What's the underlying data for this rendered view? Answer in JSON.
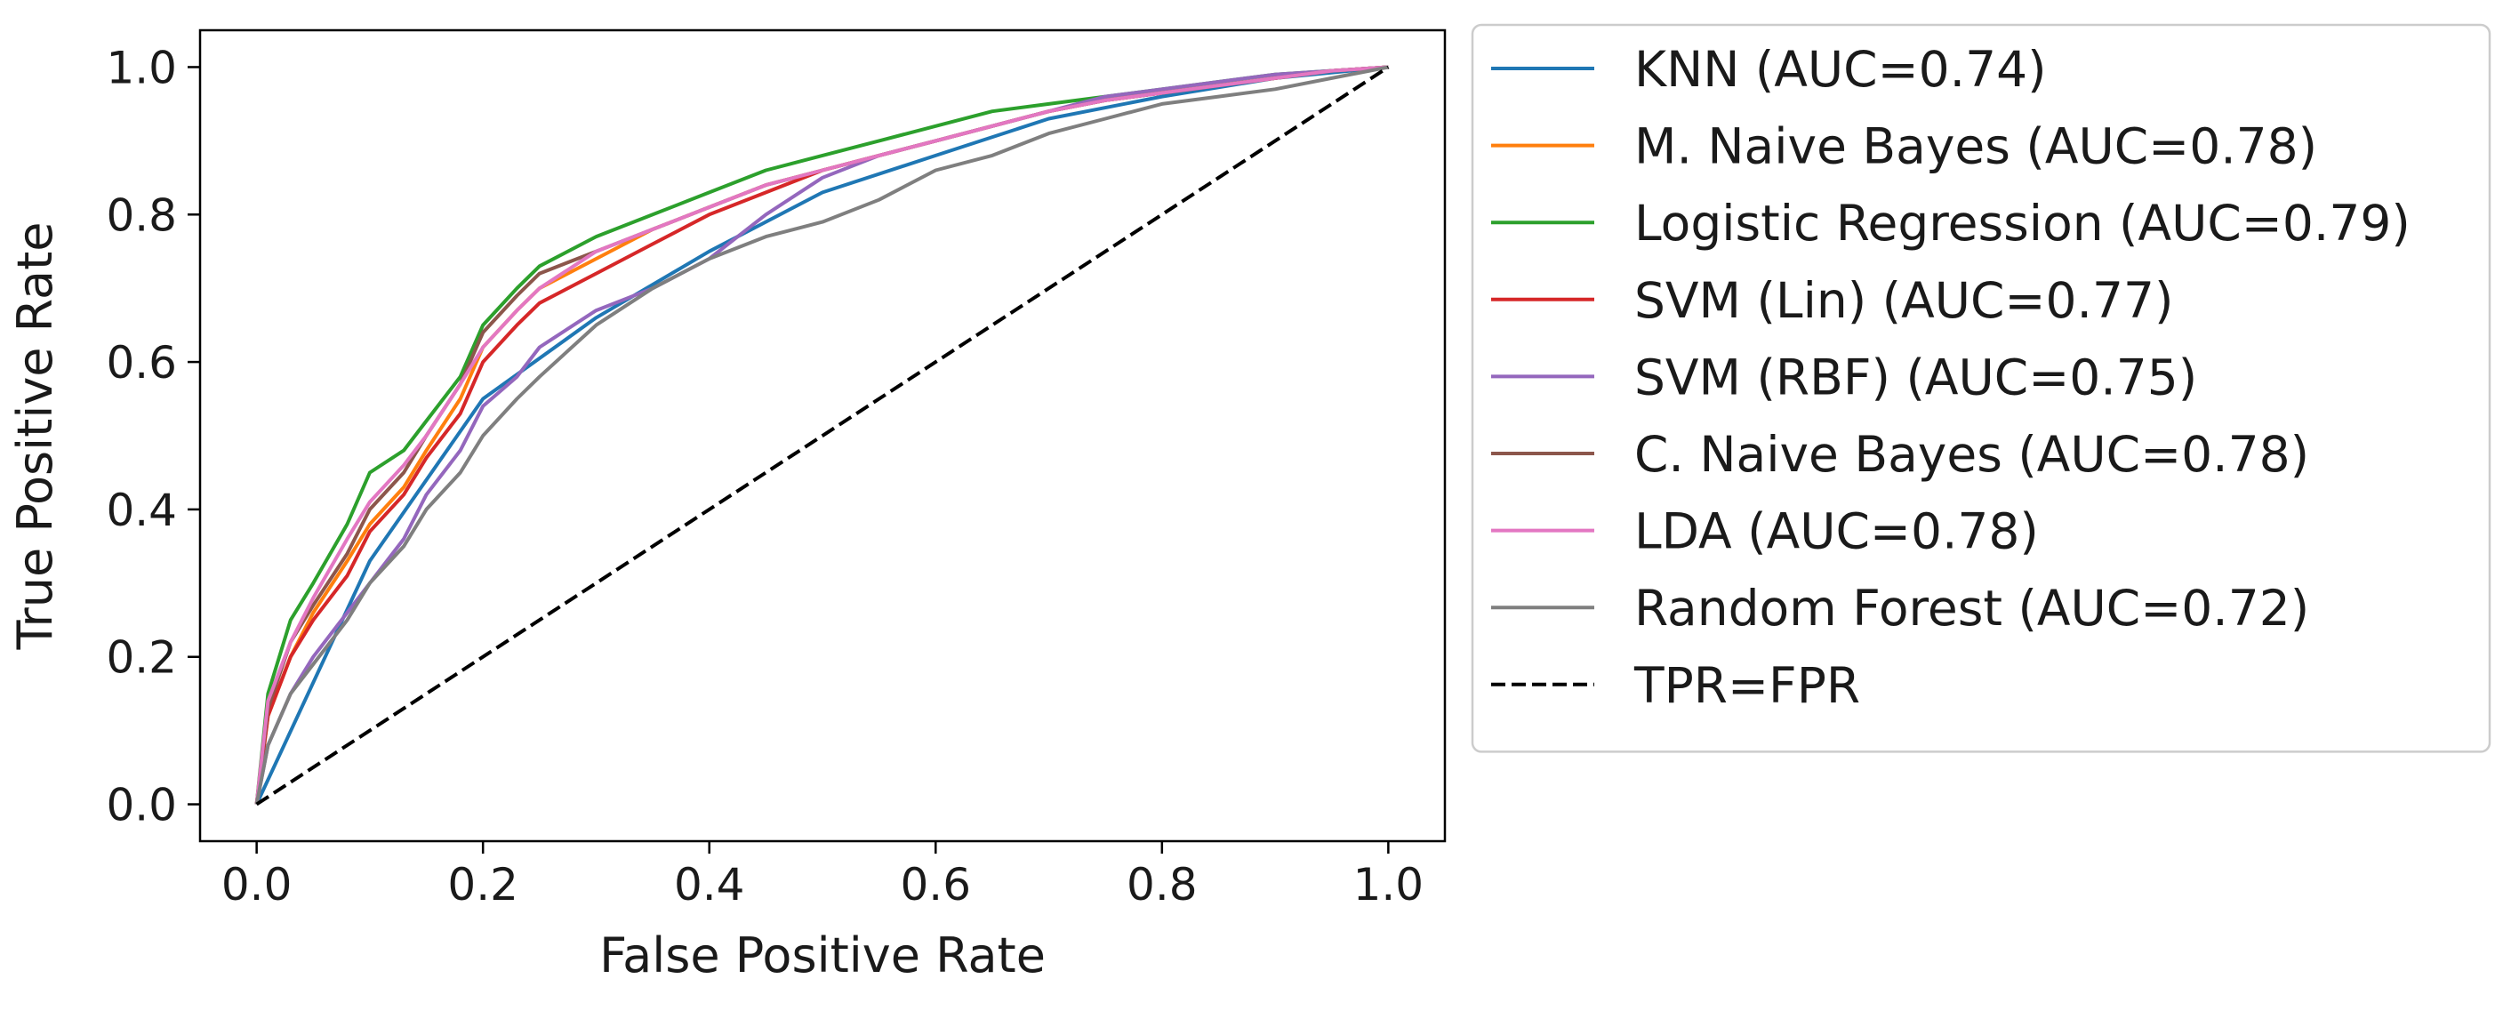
{
  "chart_data": {
    "type": "line",
    "title": "",
    "xlabel": "False Positive Rate",
    "ylabel": "True Positive Rate",
    "xlim": [
      -0.05,
      1.05
    ],
    "ylim": [
      -0.05,
      1.05
    ],
    "xticks": [
      0.0,
      0.2,
      0.4,
      0.6,
      0.8,
      1.0
    ],
    "yticks": [
      0.0,
      0.2,
      0.4,
      0.6,
      0.8,
      1.0
    ],
    "xtick_labels": [
      "0.0",
      "0.2",
      "0.4",
      "0.6",
      "0.8",
      "1.0"
    ],
    "ytick_labels": [
      "0.0",
      "0.2",
      "0.4",
      "0.6",
      "0.8",
      "1.0"
    ],
    "grid": false,
    "legend_position": "outside-right",
    "series": [
      {
        "name": "KNN (AUC=0.74)",
        "color": "#1f77b4",
        "dash": "solid",
        "x": [
          0,
          0.1,
          0.2,
          0.3,
          0.4,
          0.5,
          0.6,
          0.7,
          0.8,
          0.9,
          1.0
        ],
        "y": [
          0,
          0.33,
          0.55,
          0.66,
          0.75,
          0.83,
          0.88,
          0.93,
          0.96,
          0.985,
          1.0
        ]
      },
      {
        "name": "M. Naive Bayes (AUC=0.78)",
        "color": "#ff7f0e",
        "dash": "solid",
        "x": [
          0,
          0.01,
          0.03,
          0.05,
          0.08,
          0.1,
          0.13,
          0.15,
          0.18,
          0.2,
          0.23,
          0.25,
          0.3,
          0.35,
          0.4,
          0.45,
          0.5,
          0.55,
          0.6,
          0.65,
          0.7,
          0.75,
          0.8,
          0.85,
          0.9,
          0.95,
          1.0
        ],
        "y": [
          0,
          0.12,
          0.2,
          0.26,
          0.33,
          0.38,
          0.43,
          0.48,
          0.55,
          0.62,
          0.67,
          0.7,
          0.74,
          0.78,
          0.81,
          0.84,
          0.86,
          0.88,
          0.9,
          0.92,
          0.94,
          0.955,
          0.965,
          0.975,
          0.985,
          0.995,
          1.0
        ]
      },
      {
        "name": "Logistic Regression (AUC=0.79)",
        "color": "#2ca02c",
        "dash": "solid",
        "x": [
          0,
          0.01,
          0.03,
          0.05,
          0.08,
          0.1,
          0.13,
          0.15,
          0.18,
          0.2,
          0.23,
          0.25,
          0.3,
          0.35,
          0.4,
          0.45,
          0.5,
          0.55,
          0.6,
          0.65,
          0.7,
          0.75,
          0.8,
          0.85,
          0.9,
          0.95,
          1.0
        ],
        "y": [
          0,
          0.15,
          0.25,
          0.3,
          0.38,
          0.45,
          0.48,
          0.52,
          0.58,
          0.65,
          0.7,
          0.73,
          0.77,
          0.8,
          0.83,
          0.86,
          0.88,
          0.9,
          0.92,
          0.94,
          0.95,
          0.96,
          0.97,
          0.98,
          0.99,
          0.995,
          1.0
        ]
      },
      {
        "name": "SVM (Lin) (AUC=0.77)",
        "color": "#d62728",
        "dash": "solid",
        "x": [
          0,
          0.01,
          0.03,
          0.05,
          0.08,
          0.1,
          0.13,
          0.15,
          0.18,
          0.2,
          0.23,
          0.25,
          0.3,
          0.35,
          0.4,
          0.45,
          0.5,
          0.55,
          0.6,
          0.65,
          0.7,
          0.75,
          0.8,
          0.85,
          0.9,
          0.95,
          1.0
        ],
        "y": [
          0,
          0.12,
          0.2,
          0.25,
          0.31,
          0.37,
          0.42,
          0.47,
          0.53,
          0.6,
          0.65,
          0.68,
          0.72,
          0.76,
          0.8,
          0.83,
          0.86,
          0.88,
          0.9,
          0.92,
          0.94,
          0.955,
          0.965,
          0.975,
          0.985,
          0.995,
          1.0
        ]
      },
      {
        "name": "SVM (RBF) (AUC=0.75)",
        "color": "#9467bd",
        "dash": "solid",
        "x": [
          0,
          0.01,
          0.03,
          0.05,
          0.08,
          0.1,
          0.13,
          0.15,
          0.18,
          0.2,
          0.23,
          0.25,
          0.3,
          0.35,
          0.4,
          0.45,
          0.5,
          0.55,
          0.6,
          0.65,
          0.7,
          0.75,
          0.8,
          0.85,
          0.9,
          0.95,
          1.0
        ],
        "y": [
          0,
          0.08,
          0.15,
          0.2,
          0.26,
          0.3,
          0.36,
          0.42,
          0.48,
          0.54,
          0.58,
          0.62,
          0.67,
          0.7,
          0.74,
          0.8,
          0.85,
          0.88,
          0.9,
          0.92,
          0.94,
          0.96,
          0.97,
          0.98,
          0.99,
          0.995,
          1.0
        ]
      },
      {
        "name": "C. Naive Bayes (AUC=0.78)",
        "color": "#8c564b",
        "dash": "solid",
        "x": [
          0,
          0.01,
          0.03,
          0.05,
          0.08,
          0.1,
          0.13,
          0.15,
          0.18,
          0.2,
          0.23,
          0.25,
          0.3,
          0.35,
          0.4,
          0.45,
          0.5,
          0.55,
          0.6,
          0.65,
          0.7,
          0.75,
          0.8,
          0.85,
          0.9,
          0.95,
          1.0
        ],
        "y": [
          0,
          0.13,
          0.22,
          0.27,
          0.34,
          0.4,
          0.45,
          0.5,
          0.57,
          0.64,
          0.69,
          0.72,
          0.75,
          0.78,
          0.81,
          0.84,
          0.86,
          0.88,
          0.9,
          0.92,
          0.94,
          0.955,
          0.965,
          0.975,
          0.985,
          0.995,
          1.0
        ]
      },
      {
        "name": "LDA (AUC=0.78)",
        "color": "#e377c2",
        "dash": "solid",
        "x": [
          0,
          0.01,
          0.03,
          0.05,
          0.08,
          0.1,
          0.13,
          0.15,
          0.18,
          0.2,
          0.23,
          0.25,
          0.3,
          0.35,
          0.4,
          0.45,
          0.5,
          0.55,
          0.6,
          0.65,
          0.7,
          0.75,
          0.8,
          0.85,
          0.9,
          0.95,
          1.0
        ],
        "y": [
          0,
          0.14,
          0.22,
          0.28,
          0.36,
          0.41,
          0.46,
          0.5,
          0.57,
          0.62,
          0.67,
          0.7,
          0.75,
          0.78,
          0.81,
          0.84,
          0.86,
          0.88,
          0.9,
          0.92,
          0.94,
          0.955,
          0.965,
          0.975,
          0.985,
          0.995,
          1.0
        ]
      },
      {
        "name": "Random Forest (AUC=0.72)",
        "color": "#7f7f7f",
        "dash": "solid",
        "x": [
          0,
          0.01,
          0.03,
          0.05,
          0.08,
          0.1,
          0.13,
          0.15,
          0.18,
          0.2,
          0.23,
          0.25,
          0.3,
          0.35,
          0.4,
          0.45,
          0.5,
          0.55,
          0.6,
          0.65,
          0.7,
          0.75,
          0.8,
          0.85,
          0.9,
          0.95,
          1.0
        ],
        "y": [
          0,
          0.08,
          0.15,
          0.19,
          0.25,
          0.3,
          0.35,
          0.4,
          0.45,
          0.5,
          0.55,
          0.58,
          0.65,
          0.7,
          0.74,
          0.77,
          0.79,
          0.82,
          0.86,
          0.88,
          0.91,
          0.93,
          0.95,
          0.96,
          0.97,
          0.985,
          1.0
        ]
      },
      {
        "name": "TPR=FPR",
        "color": "#000000",
        "dash": "dashed",
        "x": [
          0,
          1
        ],
        "y": [
          0,
          1
        ]
      }
    ]
  }
}
